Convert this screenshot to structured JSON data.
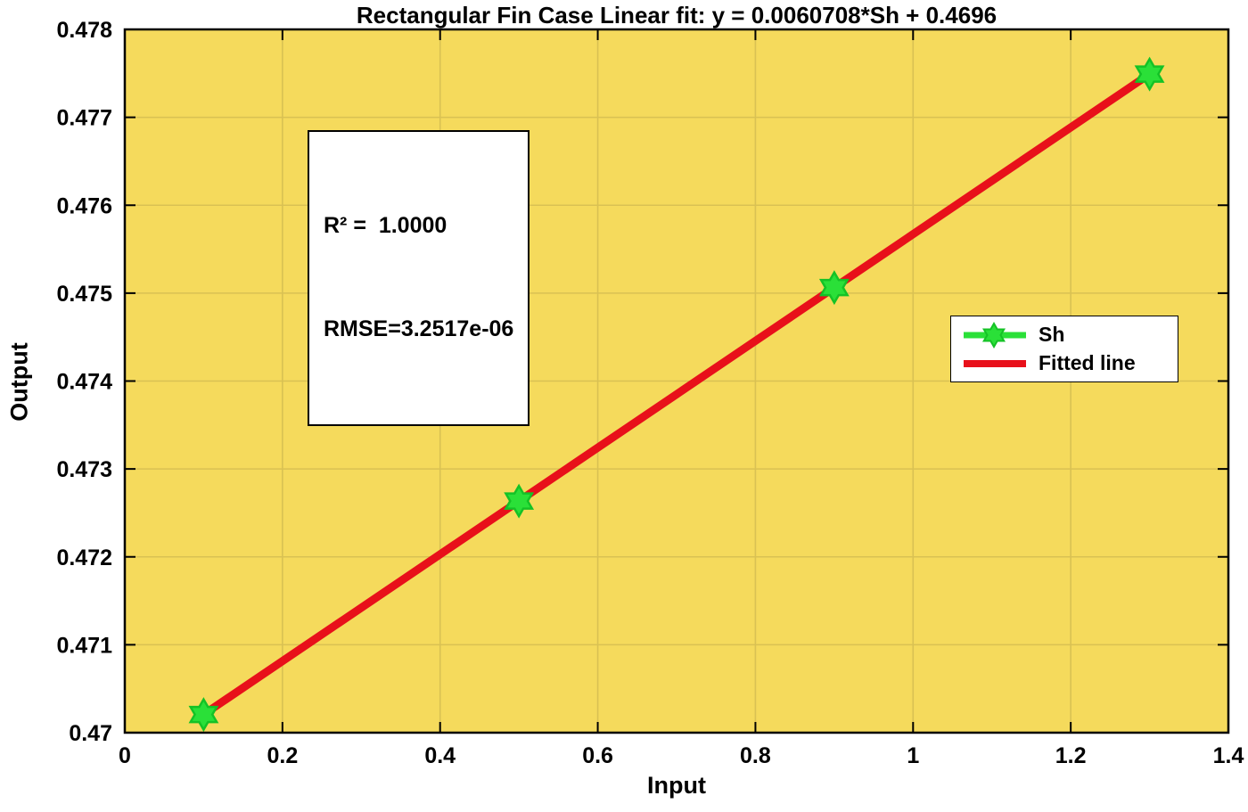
{
  "figure": {
    "title": "Rectangular Fin Case Linear fit: y = 0.0060708*Sh + 0.4696",
    "xlabel": "Input",
    "ylabel": "Output"
  },
  "annotation": {
    "line1": "R² =  1.0000",
    "line2": "RMSE=3.2517e-06"
  },
  "chart_data": {
    "type": "scatter",
    "title": "Rectangular Fin Case Linear fit: y = 0.0060708*Sh + 0.4696",
    "xlabel": "Input",
    "ylabel": "Output",
    "xlim": [
      0,
      1.4
    ],
    "ylim": [
      0.47,
      0.478
    ],
    "xticks": [
      0,
      0.2,
      0.4,
      0.6,
      0.8,
      1,
      1.2,
      1.4
    ],
    "xtick_labels": [
      "0",
      "0.2",
      "0.4",
      "0.6",
      "0.8",
      "1",
      "1.2",
      "1.4"
    ],
    "yticks": [
      0.47,
      0.471,
      0.472,
      0.473,
      0.474,
      0.475,
      0.476,
      0.477,
      0.478
    ],
    "ytick_labels": [
      "0.47",
      "0.471",
      "0.472",
      "0.473",
      "0.474",
      "0.475",
      "0.476",
      "0.477",
      "0.478"
    ],
    "grid": true,
    "legend_position": "right",
    "fit_equation": "y = 0.0060708*Sh + 0.4696",
    "r_squared": "1.0000",
    "rmse": "3.2517e-06",
    "series": [
      {
        "name": "Sh",
        "type": "scatter",
        "marker": "hexagram",
        "color": "#2ae038",
        "edge_color": "#14c226",
        "x": [
          0.1,
          0.5,
          0.9,
          1.3
        ],
        "y": [
          0.470207,
          0.472635,
          0.475064,
          0.477492
        ]
      },
      {
        "name": "Fitted line",
        "type": "line",
        "color": "#e8101a",
        "x": [
          0.1,
          1.3
        ],
        "y": [
          0.470207,
          0.477492
        ]
      }
    ],
    "colors": {
      "plot_bg": "#f5da5c",
      "grid": "#d9c153",
      "axis": "#000000",
      "text": "#000000"
    }
  }
}
